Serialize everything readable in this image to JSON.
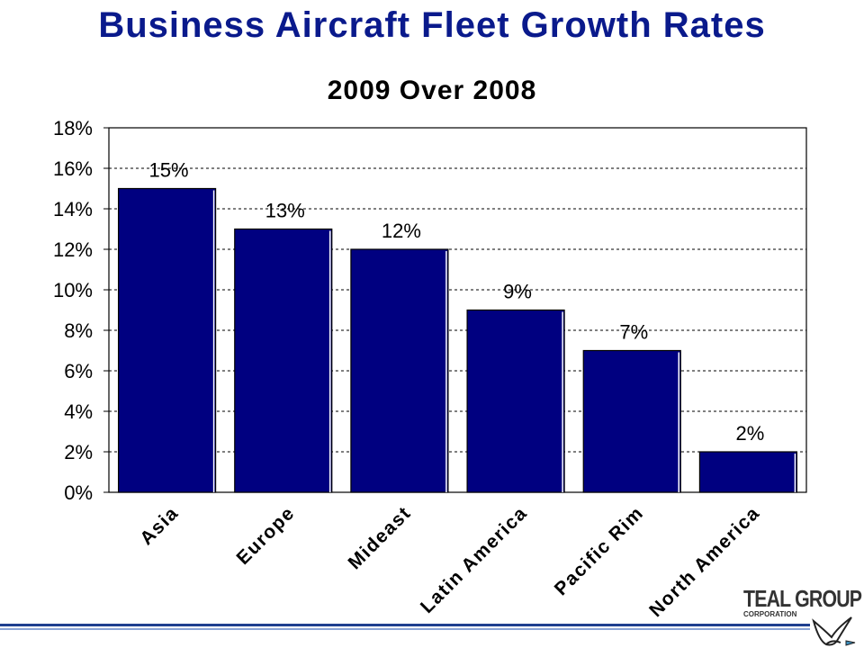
{
  "title": "Business Aircraft Fleet Growth Rates",
  "subtitle": "2009 Over 2008",
  "logo": {
    "name": "TEAL GROUP",
    "sub": "CORPORATION"
  },
  "colors": {
    "bar": "#000080",
    "title": "#0a1a8c",
    "footer": "#1f3f8f"
  },
  "chart_data": {
    "type": "bar",
    "title": "Business Aircraft Fleet Growth Rates",
    "subtitle": "2009 Over 2008",
    "categories": [
      "Asia",
      "Europe",
      "Mideast",
      "Latin America",
      "Pacific Rim",
      "North America"
    ],
    "values": [
      15,
      13,
      12,
      9,
      7,
      2
    ],
    "data_labels": [
      "15%",
      "13%",
      "12%",
      "9%",
      "7%",
      "2%"
    ],
    "ylim": [
      0,
      18
    ],
    "yticks": [
      "0%",
      "2%",
      "4%",
      "6%",
      "8%",
      "10%",
      "12%",
      "14%",
      "16%",
      "18%"
    ],
    "xlabel": "",
    "ylabel": "",
    "grid": true,
    "legend": "none"
  }
}
